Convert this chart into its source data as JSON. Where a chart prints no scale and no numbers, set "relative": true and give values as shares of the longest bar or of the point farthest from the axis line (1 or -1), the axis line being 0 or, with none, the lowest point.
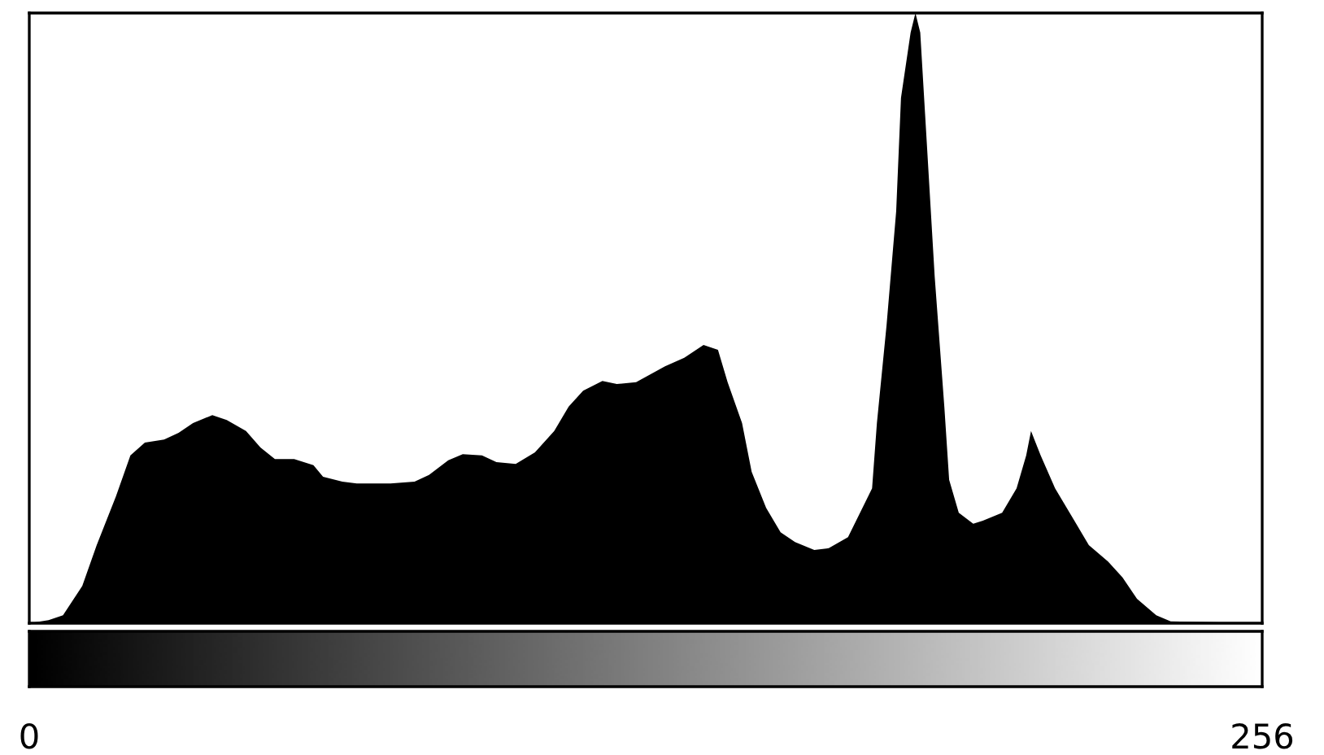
{
  "chart_data": {
    "type": "area",
    "relative": true,
    "color": "#000000",
    "xlim": [
      0,
      256
    ],
    "xticks": [
      0,
      256
    ],
    "x": [
      0,
      4,
      7,
      11,
      14,
      18,
      21,
      24,
      28,
      31,
      34,
      38,
      41,
      45,
      48,
      51,
      55,
      59,
      61,
      65,
      68,
      75,
      80,
      83,
      87,
      90,
      94,
      97,
      101,
      105,
      109,
      112,
      115,
      119,
      122,
      126,
      129,
      132,
      136,
      140,
      143,
      145,
      148,
      150,
      153,
      156,
      159,
      163,
      166,
      170,
      172,
      175,
      176,
      178,
      180,
      181,
      183,
      184,
      185,
      186,
      188,
      190,
      191,
      193,
      196,
      198,
      202,
      205,
      207,
      208,
      210,
      213,
      217,
      220,
      224,
      227,
      230,
      234,
      237,
      256
    ],
    "values": [
      0,
      0.005,
      0.013,
      0.061,
      0.128,
      0.208,
      0.275,
      0.296,
      0.301,
      0.312,
      0.328,
      0.341,
      0.333,
      0.315,
      0.288,
      0.269,
      0.269,
      0.259,
      0.24,
      0.232,
      0.229,
      0.229,
      0.232,
      0.243,
      0.267,
      0.277,
      0.275,
      0.264,
      0.261,
      0.28,
      0.315,
      0.355,
      0.381,
      0.397,
      0.392,
      0.395,
      0.408,
      0.421,
      0.435,
      0.456,
      0.448,
      0.395,
      0.328,
      0.248,
      0.189,
      0.149,
      0.133,
      0.12,
      0.123,
      0.141,
      0.173,
      0.221,
      0.328,
      0.488,
      0.675,
      0.861,
      0.968,
      1,
      0.968,
      0.835,
      0.568,
      0.355,
      0.235,
      0.181,
      0.163,
      0.168,
      0.181,
      0.221,
      0.275,
      0.315,
      0.275,
      0.221,
      0.168,
      0.128,
      0.101,
      0.075,
      0.04,
      0.013,
      0.003,
      0
    ]
  }
}
